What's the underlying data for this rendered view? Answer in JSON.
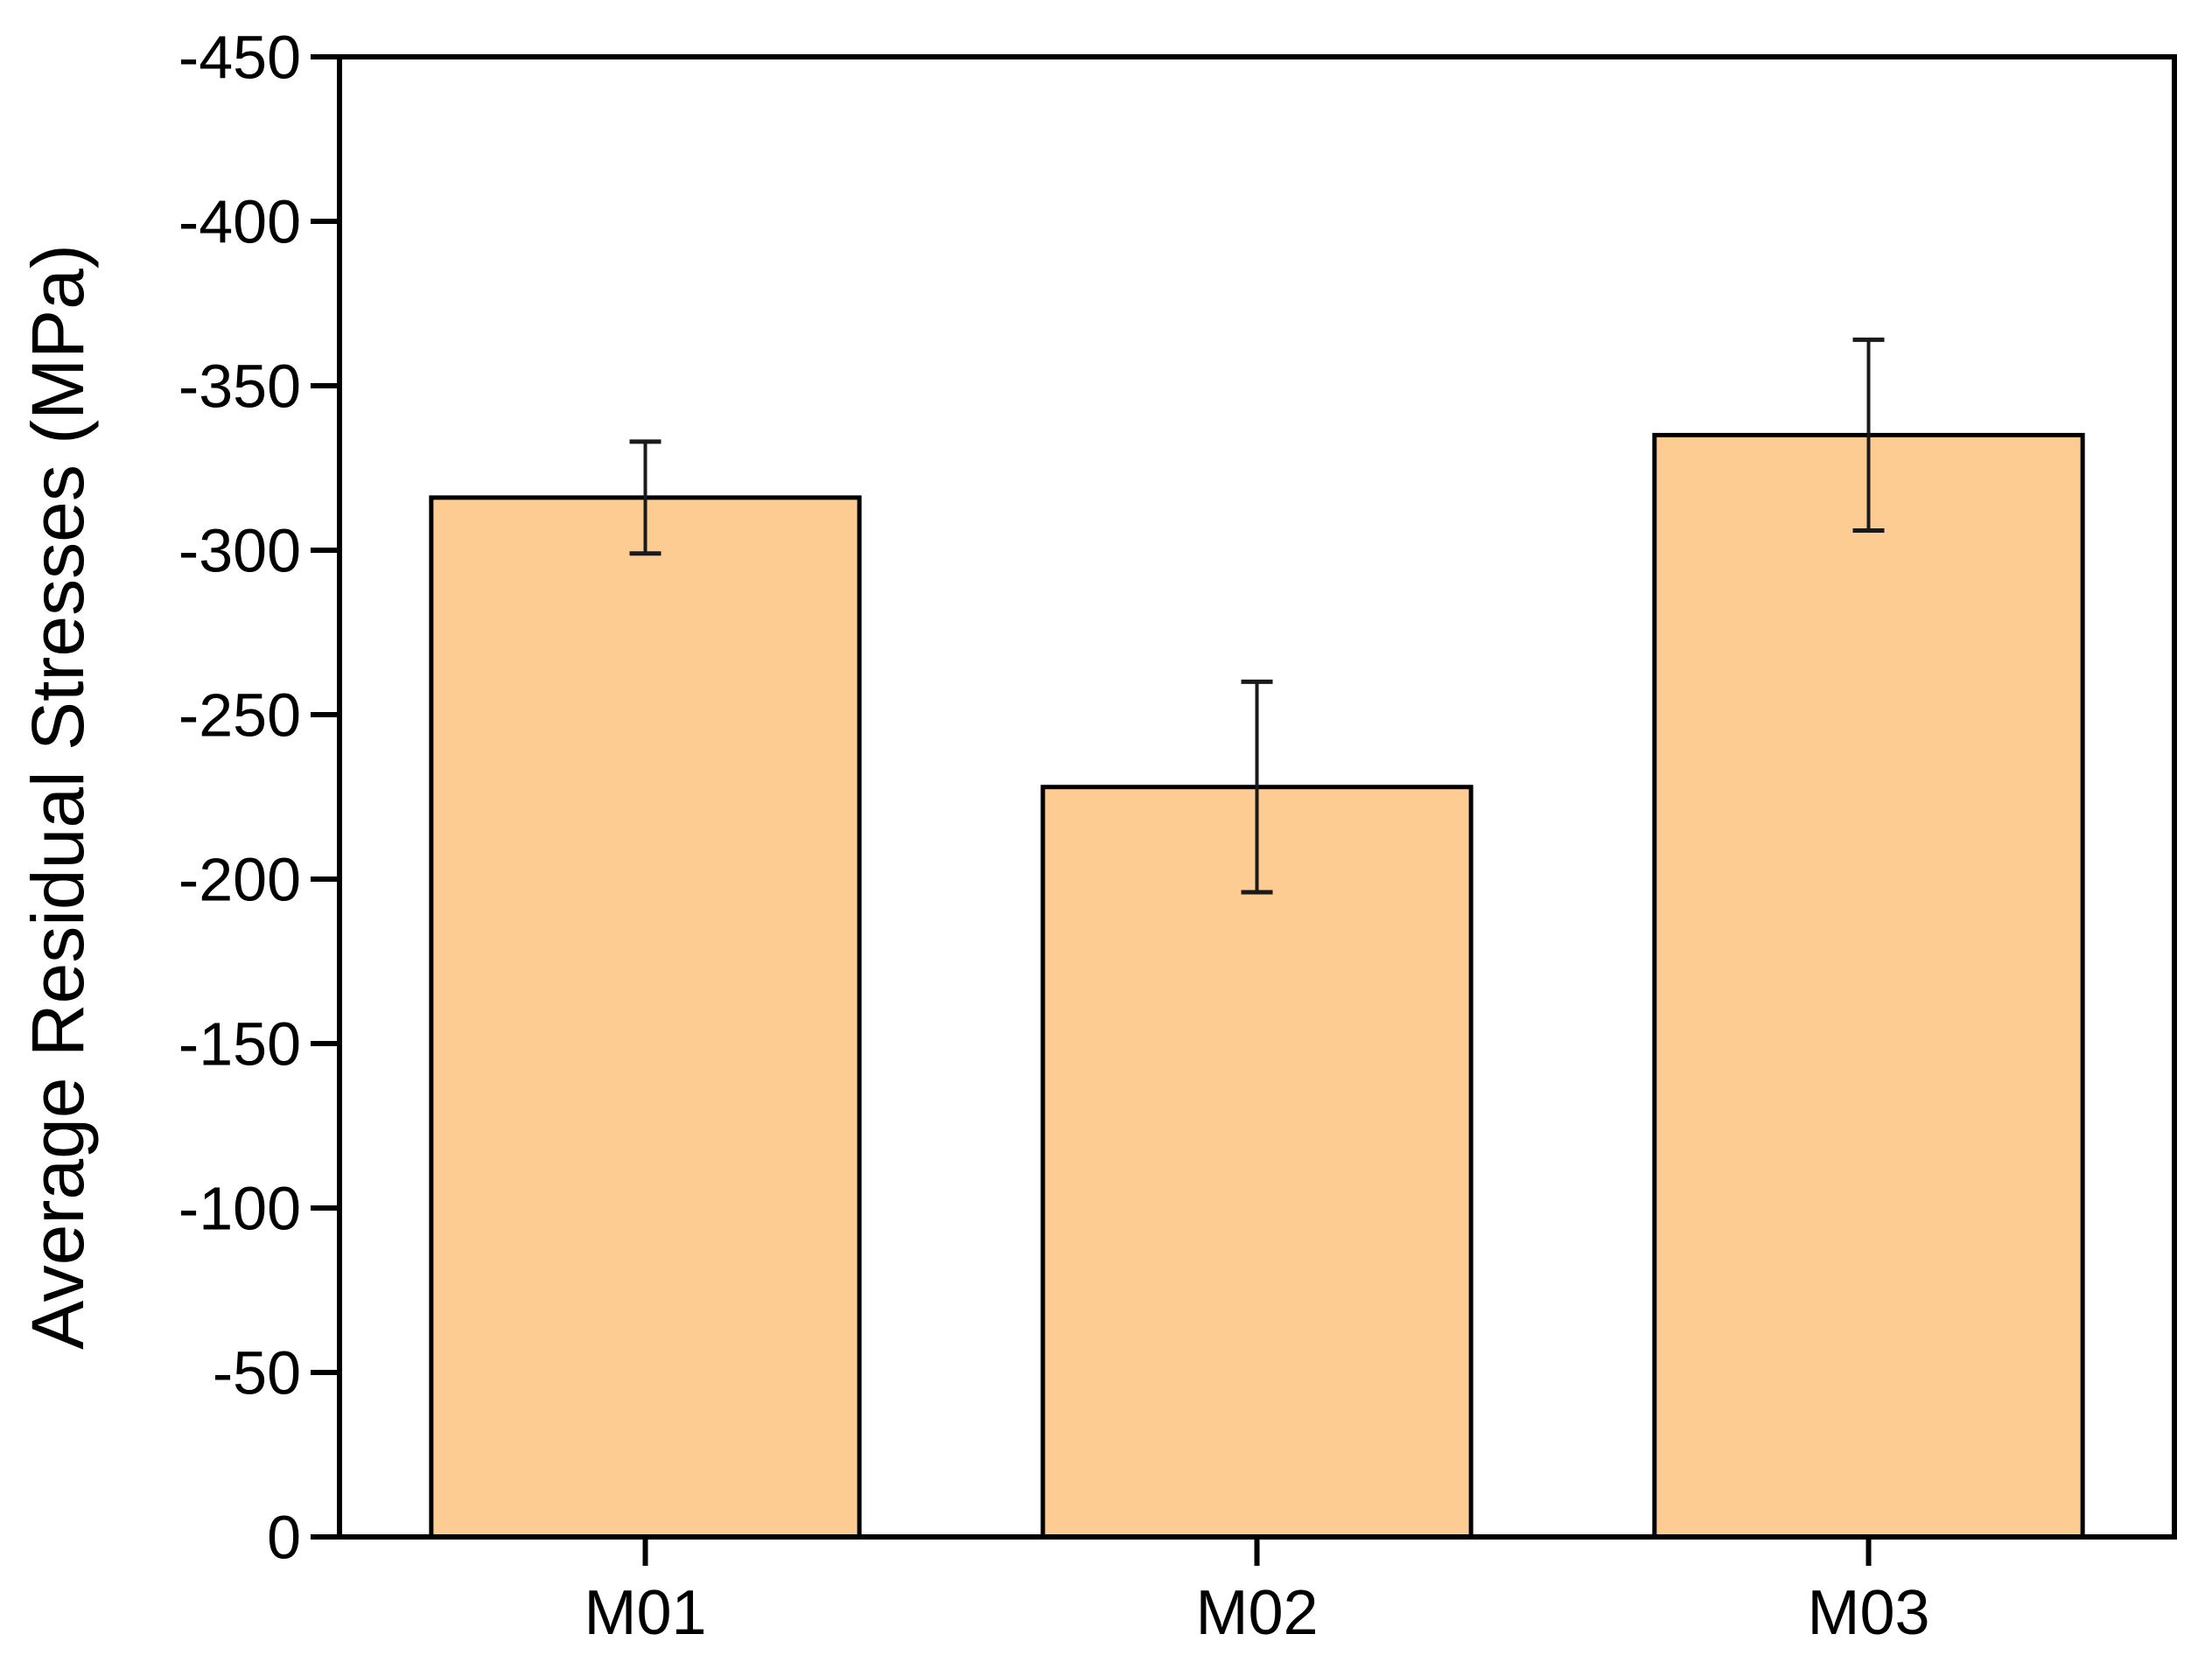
{
  "chart_data": {
    "type": "bar",
    "title": "",
    "xlabel": "",
    "ylabel": "Average Residual Stresses (MPa)",
    "categories": [
      "M01",
      "M02",
      "M03"
    ],
    "series": [
      {
        "name": "Average Residual Stresses",
        "values": [
          -316,
          -228,
          -335
        ],
        "errors": [
          17,
          32,
          29
        ]
      }
    ],
    "error_caps": [
      {
        "upper": -333,
        "lower": -299
      },
      {
        "upper": -260,
        "lower": -196
      },
      {
        "upper": -364,
        "lower": -306
      }
    ],
    "ylim": [
      0,
      -450
    ],
    "yticks": [
      0,
      -50,
      -100,
      -150,
      -200,
      -250,
      -300,
      -350,
      -400,
      -450
    ],
    "ytick_labels": [
      "0",
      "-50",
      "-100",
      "-150",
      "-200",
      "-250",
      "-300",
      "-350",
      "-400",
      "-450"
    ],
    "grid": false,
    "legend_position": "none",
    "axis_reversed": true,
    "colors": {
      "bar_fill": "#FDCC92",
      "bar_edge": "#000000",
      "axis": "#000000",
      "error_bar": "#1a1a1a",
      "background": "#FFFFFF"
    }
  }
}
